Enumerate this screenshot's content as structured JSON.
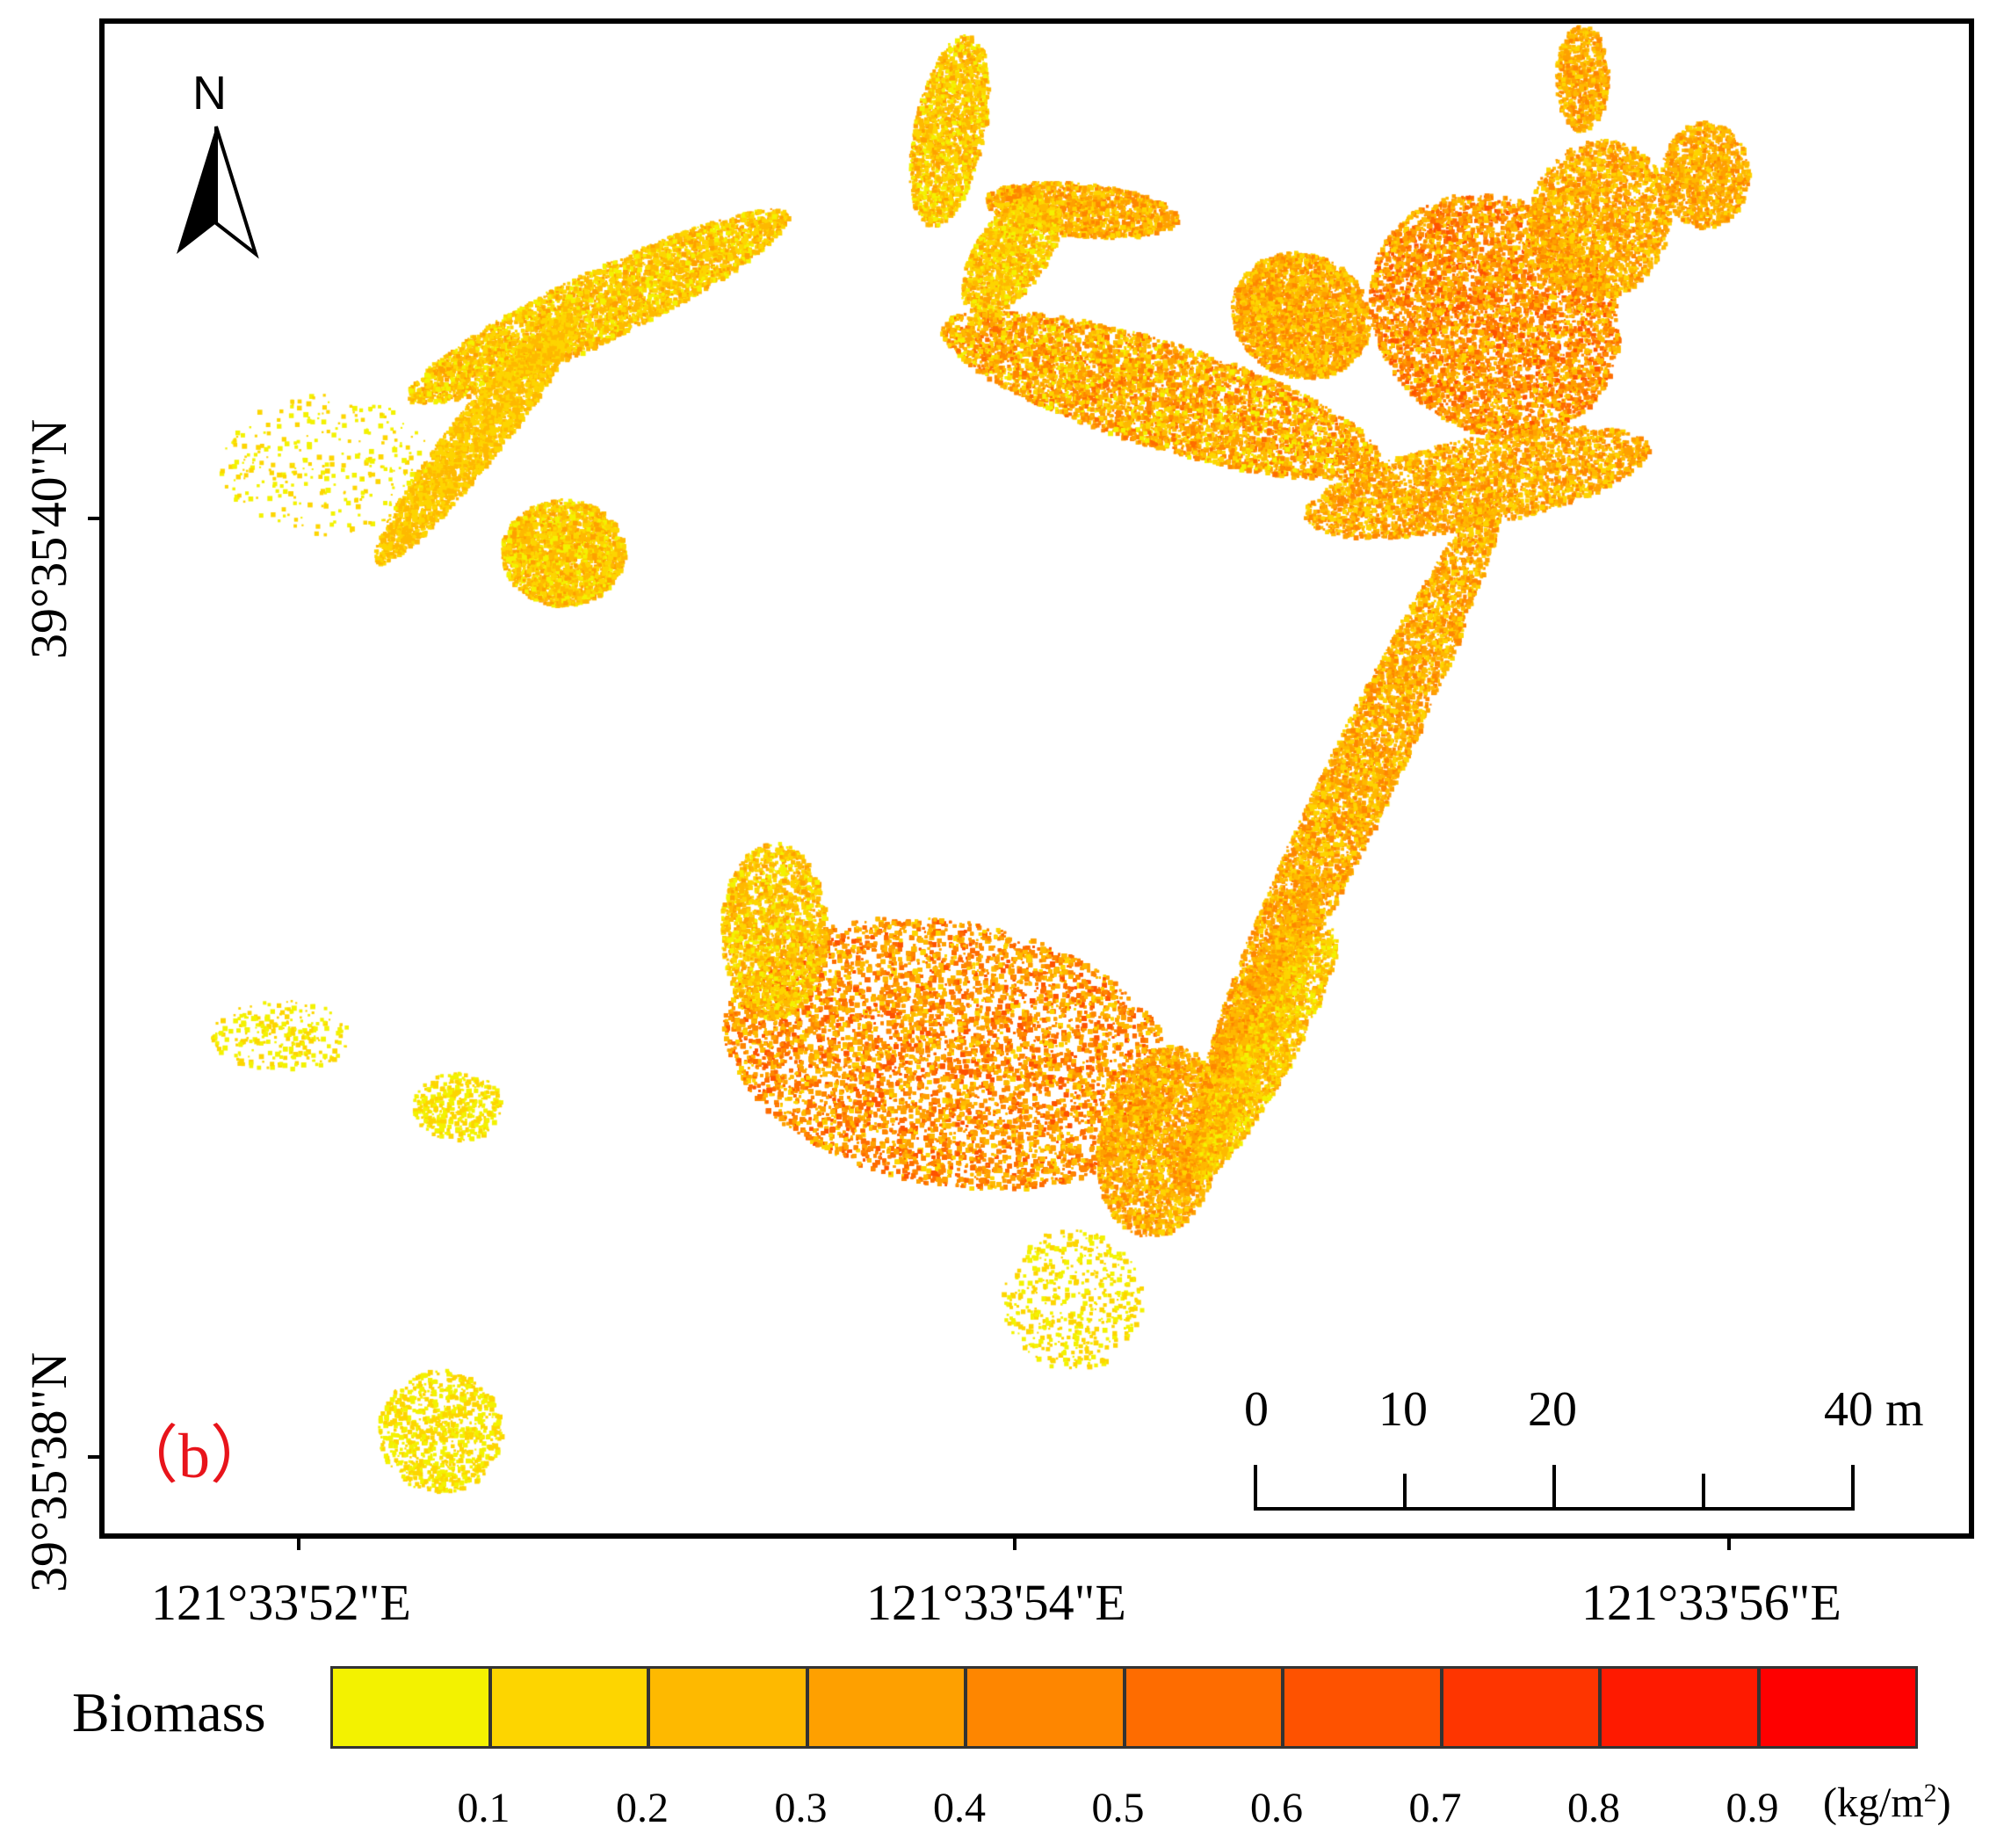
{
  "map": {
    "panel_label": "（b）",
    "north_label": "N",
    "latitude_labels": [
      "39°35'40\"N",
      "39°35'38\"N"
    ],
    "longitude_labels": [
      "121°33'52\"E",
      "121°33'54\"E",
      "121°33'56\"E"
    ],
    "scale_bar": {
      "labels": [
        "0",
        "10",
        "20",
        "40 m"
      ]
    }
  },
  "legend": {
    "title": "Biomass",
    "labels": [
      "0.1",
      "0.2",
      "0.3",
      "0.4",
      "0.5",
      "0.6",
      "0.7",
      "0.8",
      "0.9"
    ],
    "unit_base": "(kg/m",
    "unit_sup": "2",
    "unit_close": ")",
    "colors": [
      "#f3f200",
      "#fdd500",
      "#feb900",
      "#fea000",
      "#fe8600",
      "#fe6c00",
      "#fe5200",
      "#fe3500",
      "#fe1a00",
      "#fe0000"
    ]
  }
}
